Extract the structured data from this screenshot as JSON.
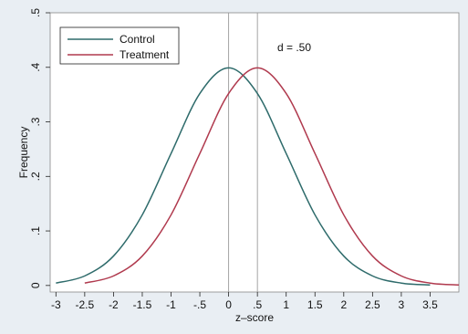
{
  "chart_data": {
    "type": "line",
    "xlabel": "z–score",
    "ylabel": "Frequency",
    "xlim": [
      -3.1,
      4.0
    ],
    "ylim": [
      -0.012,
      0.5
    ],
    "x_ticks": [
      -3,
      -2.5,
      -2,
      -1.5,
      -1,
      -0.5,
      0,
      0.5,
      1,
      1.5,
      2,
      2.5,
      3,
      3.5
    ],
    "x_tick_labels": [
      "-3",
      "-2.5",
      "-2",
      "-1.5",
      "-1",
      "-.5",
      "0",
      ".5",
      "1",
      "1.5",
      "2",
      "2.5",
      "3",
      "3.5"
    ],
    "y_ticks": [
      0,
      0.1,
      0.2,
      0.3,
      0.4,
      0.5
    ],
    "y_tick_labels": [
      "0",
      ".1",
      ".2",
      ".3",
      ".4",
      ".5"
    ],
    "legend_position": "top-left",
    "annotation": "d = .50",
    "reference_lines_x": [
      0,
      0.5
    ],
    "series": [
      {
        "name": "Control",
        "color": "#2e6b6b",
        "x": [
          -3,
          -2.5,
          -2,
          -1.5,
          -1,
          -0.5,
          0,
          0.5,
          1,
          1.5,
          2,
          2.5,
          3,
          3.5
        ],
        "y": [
          0.0044,
          0.0175,
          0.054,
          0.1295,
          0.242,
          0.352,
          0.399,
          0.352,
          0.242,
          0.1295,
          0.054,
          0.0175,
          0.0044,
          0.0009
        ]
      },
      {
        "name": "Treatment",
        "color": "#b03a4e",
        "x": [
          -2.5,
          -2,
          -1.5,
          -1,
          -0.5,
          0,
          0.5,
          1,
          1.5,
          2,
          2.5,
          3,
          3.5,
          4
        ],
        "y": [
          0.0044,
          0.0175,
          0.054,
          0.1295,
          0.242,
          0.352,
          0.399,
          0.352,
          0.242,
          0.1295,
          0.054,
          0.0175,
          0.0044,
          0.0009
        ]
      }
    ]
  }
}
